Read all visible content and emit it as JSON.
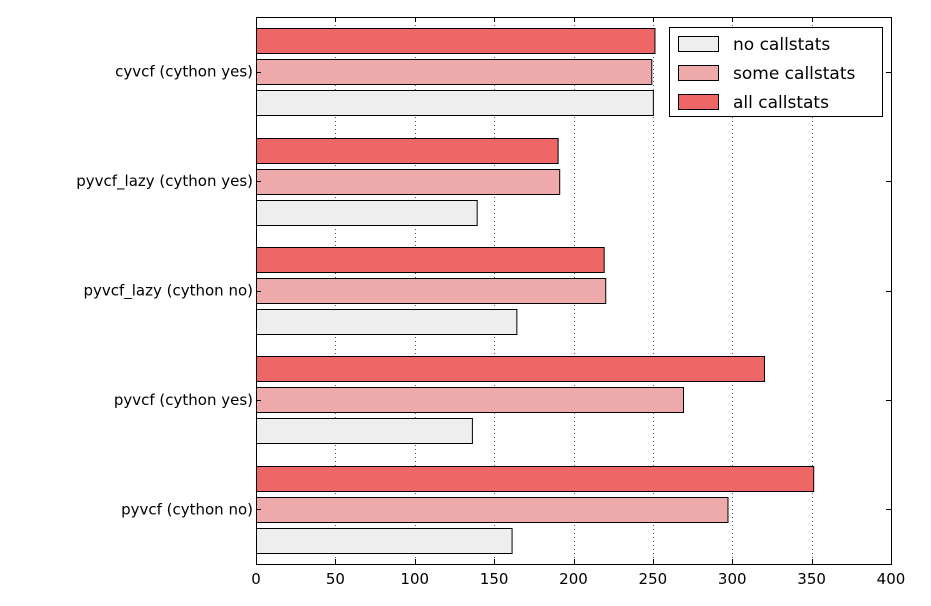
{
  "chart_data": {
    "type": "bar",
    "orientation": "horizontal",
    "categories": [
      "pyvcf (cython no)",
      "pyvcf (cython yes)",
      "pyvcf_lazy (cython no)",
      "pyvcf_lazy (cython yes)",
      "cyvcf (cython yes)"
    ],
    "series": [
      {
        "name": "no callstats",
        "values": [
          161,
          136,
          164,
          139,
          250
        ]
      },
      {
        "name": "some callstats",
        "values": [
          297,
          269,
          220,
          191,
          249
        ]
      },
      {
        "name": "all callstats",
        "values": [
          351,
          320,
          219,
          190,
          251
        ]
      }
    ],
    "xlim": [
      0,
      400
    ],
    "xticks": [
      0,
      50,
      100,
      150,
      200,
      250,
      300,
      350,
      400
    ],
    "grid": "vertical-dotted",
    "legend_position": "top-right",
    "title": "",
    "xlabel": "",
    "ylabel": ""
  },
  "colors": {
    "no callstats": "#eeeeee",
    "some callstats": "#eeaaaa",
    "all callstats": "#ee6666",
    "edge": "#000000",
    "grid": "#555555"
  }
}
